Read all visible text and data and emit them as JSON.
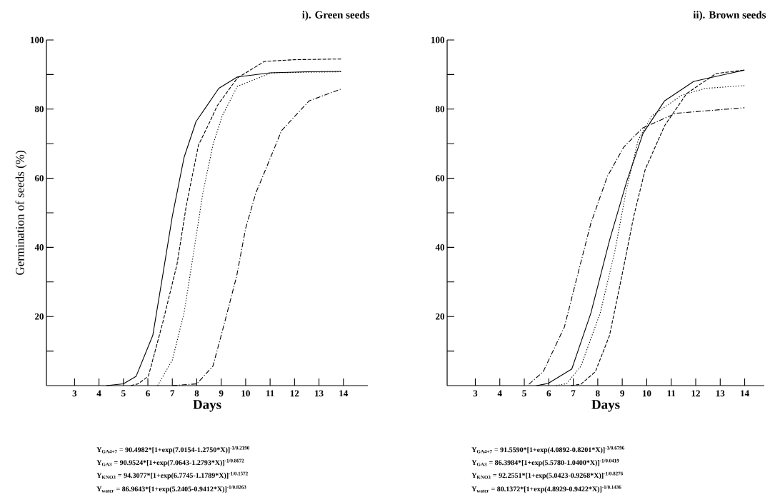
{
  "chart_data": [
    {
      "type": "line",
      "title": "i). Green seeds",
      "xlabel": "Days",
      "ylabel": "Germination of seeds (%)",
      "xlim": [
        1.85,
        15
      ],
      "ylim": [
        0,
        100
      ],
      "xticks": [
        3,
        4,
        5,
        6,
        7,
        8,
        9,
        10,
        11,
        12,
        13,
        14
      ],
      "yticks": [
        {
          "value": 10,
          "label": null
        },
        20,
        {
          "value": 30,
          "label": null
        },
        40,
        {
          "value": 50,
          "label": null
        },
        60,
        {
          "value": 70,
          "label": null
        },
        80,
        {
          "value": 90,
          "label": null
        },
        100
      ],
      "series": [
        {
          "color": "#000000",
          "line_style": "solid",
          "x": [
            4.3,
            5.0,
            5.52,
            6.2,
            6.6,
            7.0,
            7.48,
            7.97,
            8.34,
            8.9,
            9.66,
            11,
            12.5,
            13.9
          ],
          "values": [
            0,
            0.5,
            2.7,
            14.5,
            31.6,
            49,
            66,
            76.4,
            80.2,
            86,
            89.3,
            90.5,
            90.8,
            90.9
          ]
        },
        {
          "color": "#000000",
          "line_style": "dashed",
          "x": [
            5.3,
            5.6,
            6.02,
            6.6,
            7.19,
            7.57,
            8.07,
            8.54,
            8.84,
            9.66,
            10.77,
            12,
            13.9
          ],
          "values": [
            0,
            0.5,
            2.7,
            18,
            35,
            52,
            69.6,
            76.4,
            81,
            89,
            93.8,
            94.3,
            94.5
          ]
        },
        {
          "color": "#000000",
          "line_style": "dotted",
          "x": [
            6.4,
            7.0,
            7.48,
            7.87,
            8.25,
            8.66,
            9.04,
            9.66,
            11.07,
            13.9
          ],
          "values": [
            0,
            7.4,
            21,
            38.4,
            55.8,
            69.6,
            78,
            86.6,
            90.5,
            90.8
          ]
        },
        {
          "color": "#000000",
          "line_style": "dashdot",
          "x": [
            7.0,
            8.0,
            8.66,
            9.13,
            9.63,
            10.0,
            10.42,
            10.7,
            11.47,
            12.6,
            13.9
          ],
          "values": [
            0,
            0.5,
            5.6,
            18,
            31.6,
            45.5,
            55.8,
            60.5,
            73.8,
            82.4,
            85.8
          ]
        }
      ],
      "annotations": [
        "Y$_{GA4+7}$ = 90.4982*[1+exp(7.0154-1.2750*X)]$^{-1/0.2190}$",
        "Y$_{GA3}$ = 90.9524*[1+exp(7.0643-1.2793*X)]$^{-1/0.8672}$",
        "Y$_{KNO3}$ = 94.3077*[1+exp(6.7745-1.1789*X)]$^{-1/0.1572}$",
        "Y$_{water}$ = 86.9643*[1+exp(5.2405-0.9412*X)]$^{-1/0.8263}$"
      ]
    },
    {
      "type": "line",
      "title": "ii). Brown seeds",
      "xlabel": "Days",
      "xlim": [
        1.85,
        14.8
      ],
      "ylim": [
        0,
        100
      ],
      "xticks": [
        3,
        4,
        5,
        6,
        7,
        8,
        9,
        10,
        11,
        12,
        13,
        14
      ],
      "yticks": [
        {
          "value": 10,
          "label": null
        },
        20,
        {
          "value": 30,
          "label": null
        },
        40,
        {
          "value": 50,
          "label": null
        },
        60,
        {
          "value": 70,
          "label": null
        },
        80,
        {
          "value": 90,
          "label": null
        },
        100
      ],
      "series": [
        {
          "color": "#000000",
          "line_style": "solid",
          "x": [
            5.5,
            5.97,
            6.94,
            7.72,
            8.48,
            9.18,
            9.85,
            10.73,
            11.92,
            13.99
          ],
          "values": [
            0,
            0.6,
            4.8,
            21,
            42,
            59,
            73,
            82.4,
            88,
            91.3
          ]
        },
        {
          "color": "#000000",
          "line_style": "dashed",
          "x": [
            6.9,
            7.31,
            7.9,
            8.48,
            8.98,
            9.47,
            9.94,
            10.73,
            11.63,
            12.83,
            13.99
          ],
          "values": [
            0,
            0.4,
            4,
            14.5,
            31.6,
            49,
            62.6,
            75.2,
            84.5,
            90.3,
            91.3
          ]
        },
        {
          "color": "#000000",
          "line_style": "dotted",
          "x": [
            6.3,
            6.73,
            7.31,
            8.1,
            8.69,
            9.18,
            9.65,
            10.2,
            11.43,
            12.4,
            13.99
          ],
          "values": [
            0,
            0.6,
            5.6,
            21,
            38.6,
            57,
            71,
            78,
            84,
            86,
            86.8
          ]
        },
        {
          "color": "#000000",
          "line_style": "dashdot",
          "x": [
            5.19,
            5.77,
            6.64,
            7.14,
            7.72,
            8.39,
            9.06,
            9.82,
            11.2,
            13.99
          ],
          "values": [
            0.4,
            4,
            17,
            31,
            47,
            60.5,
            69,
            74.5,
            78.8,
            80.4
          ]
        }
      ],
      "annotations": [
        "Y$_{GA4+7}$ = 91.5590*[1+exp(4.0892-0.8201*X)]$^{-1/0.6796}$",
        "Y$_{GA3}$ = 86.3984*[1+exp(5.5780-1.0400*X)]$^{-1/0.0419}$",
        "Y$_{KNO3}$ = 92.2551*[1+exp(5.0423-0.9268*X)]$^{-1/0.8276}$",
        "Y$_{water}$ = 80.1372*[1+exp(4.8929-0.9422*X)]$^{-1/0.1436}$"
      ]
    }
  ]
}
